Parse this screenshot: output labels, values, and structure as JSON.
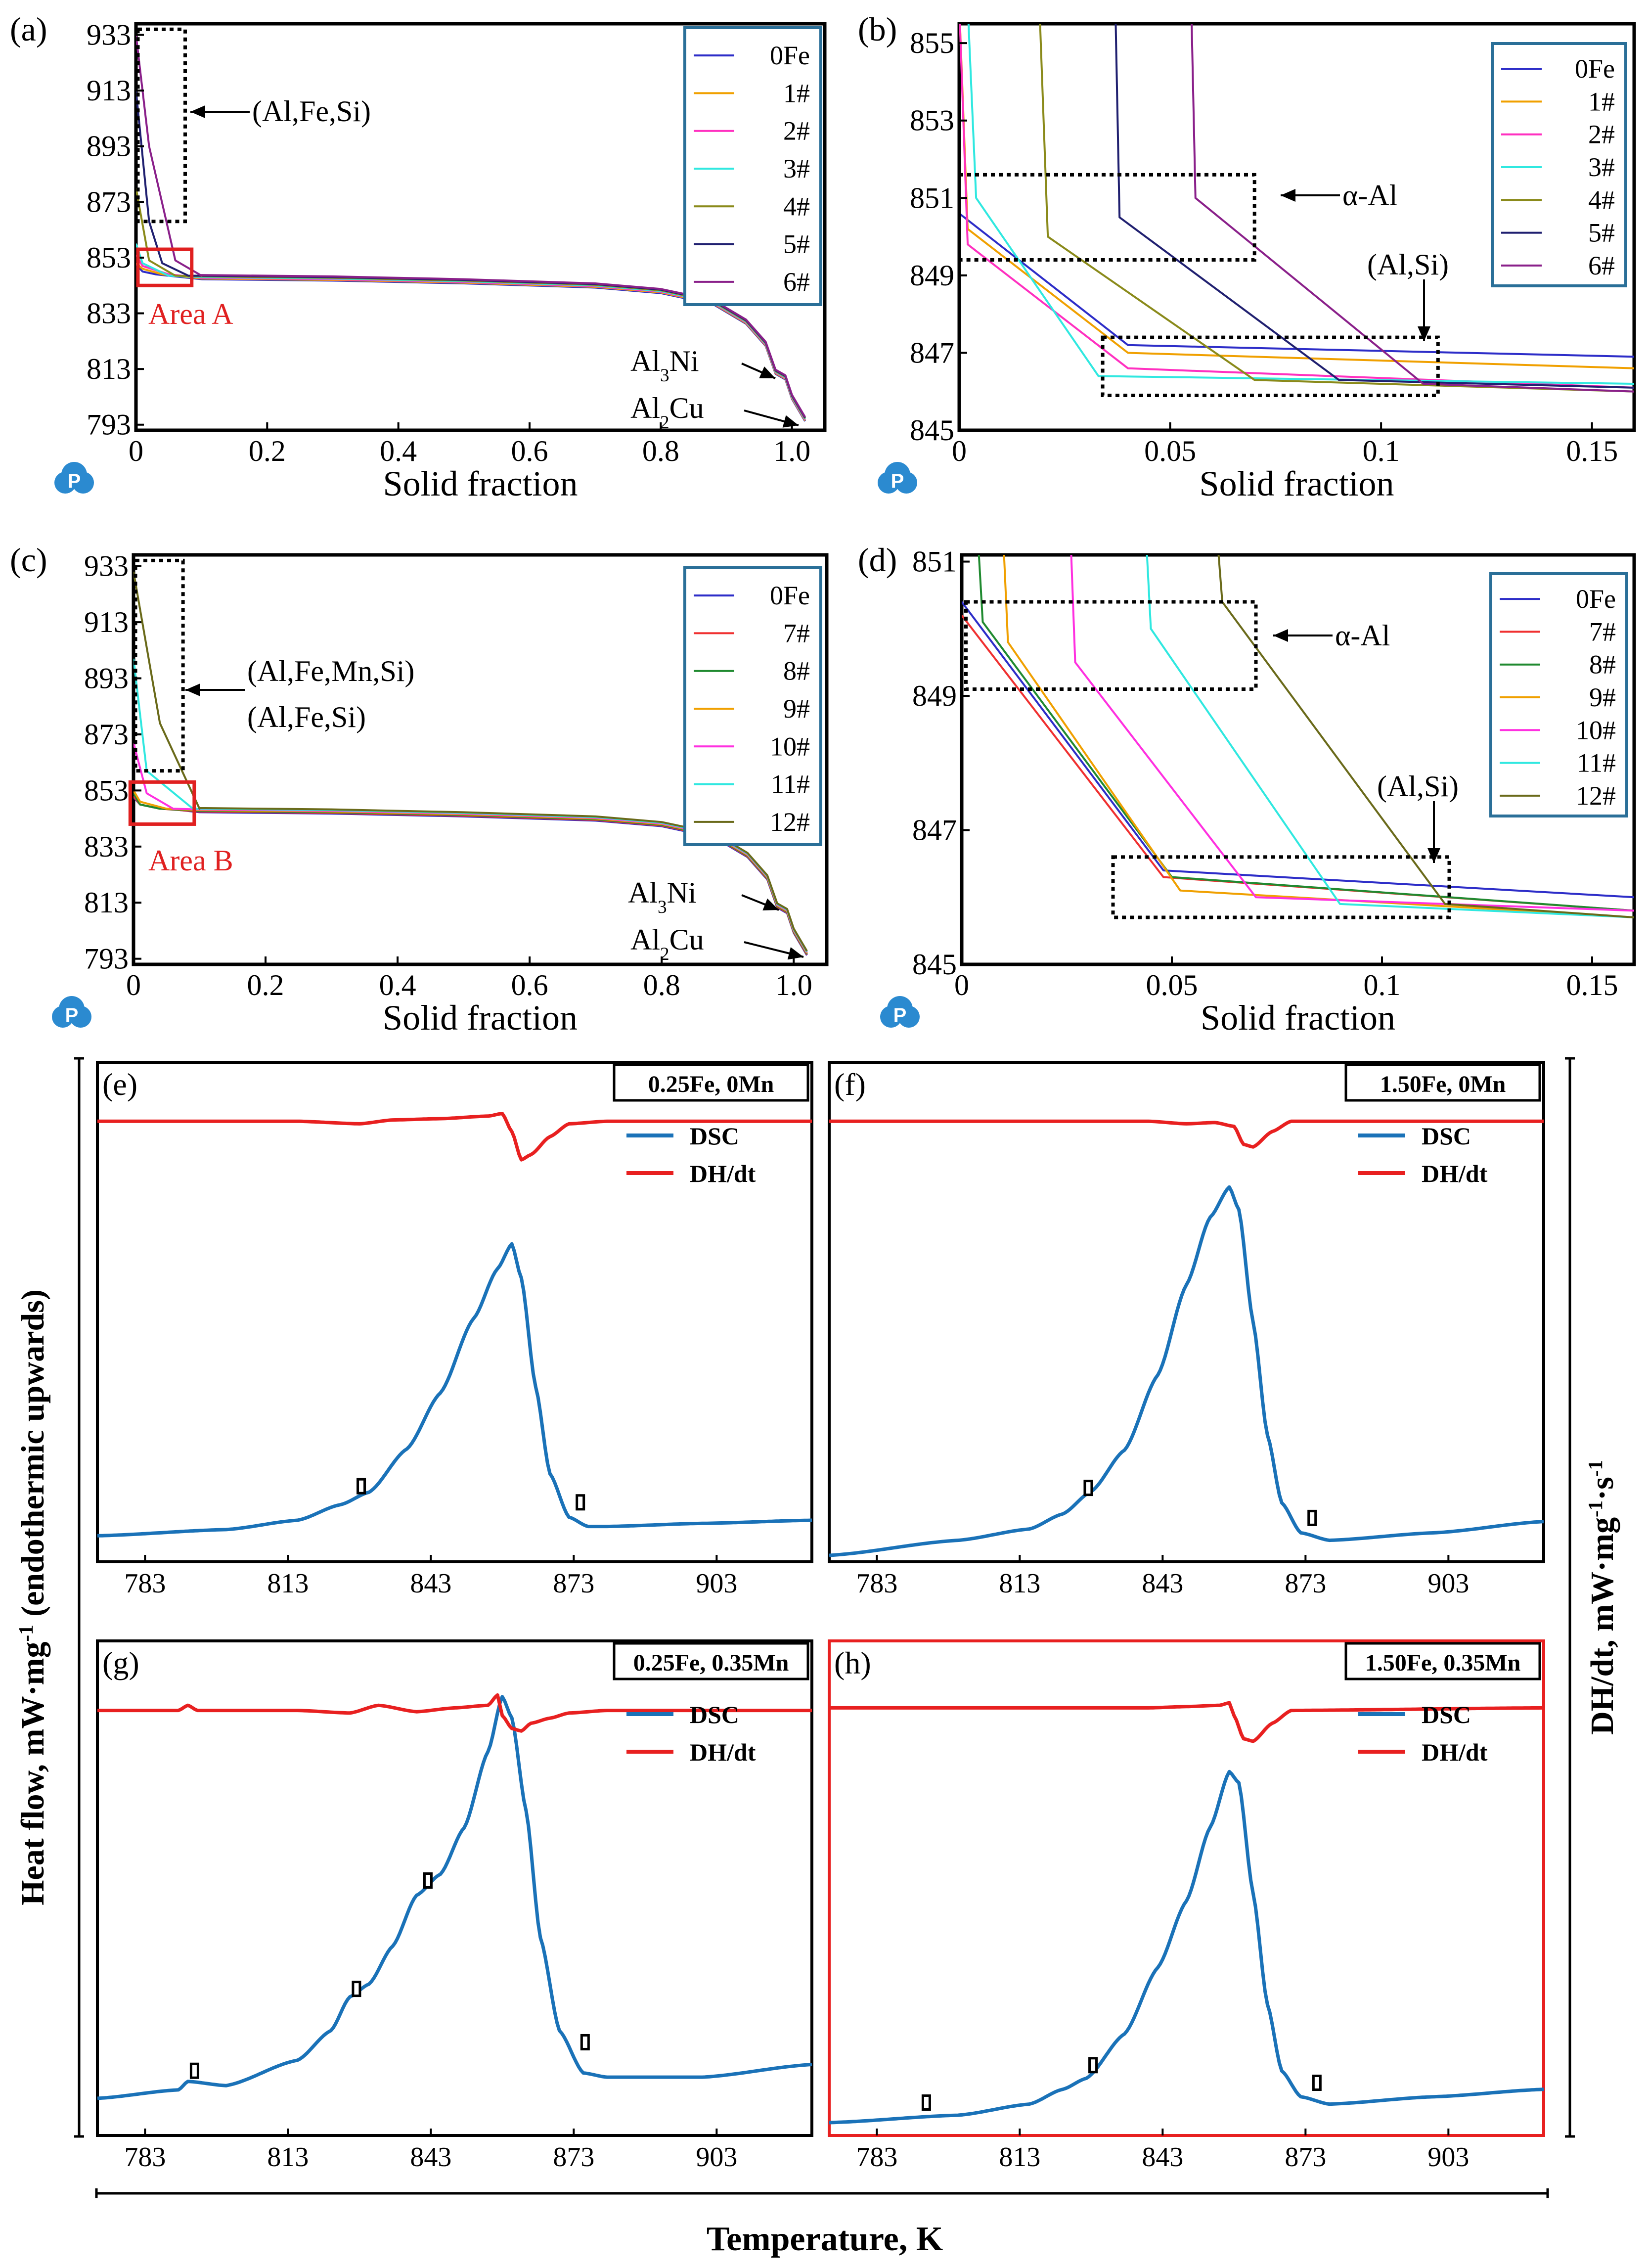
{
  "chart_data": [
    {
      "id": "a",
      "type": "line",
      "panel_label": "(a)",
      "xlabel": "Solid fraction",
      "ylabel": "",
      "xlim": [
        0,
        1.05
      ],
      "ylim": [
        791,
        937
      ],
      "xticks": [
        0,
        0.2,
        0.4,
        0.6,
        0.8,
        1.0
      ],
      "xtick_labels": [
        "0",
        "0.2",
        "0.4",
        "0.6",
        "0.8",
        "1.0"
      ],
      "yticks": [
        793,
        813,
        833,
        853,
        873,
        893,
        913,
        933
      ],
      "legend": [
        "0Fe",
        "1#",
        "2#",
        "3#",
        "4#",
        "5#",
        "6#"
      ],
      "colors": [
        "#2d2dc8",
        "#f0a000",
        "#ff30c0",
        "#30e8e0",
        "#8a8a1a",
        "#202070",
        "#8a208a"
      ],
      "series_start": [
        {
          "name": "0Fe",
          "x": [
            0,
            0.01,
            0.03
          ],
          "y": [
            850.6,
            848,
            847
          ]
        },
        {
          "name": "1#",
          "x": [
            0,
            0.01,
            0.04
          ],
          "y": [
            851,
            849,
            847
          ]
        },
        {
          "name": "2#",
          "x": [
            0,
            0.01,
            0.05
          ],
          "y": [
            854,
            850,
            847
          ]
        },
        {
          "name": "3#",
          "x": [
            0,
            0.01,
            0.05
          ],
          "y": [
            858,
            851,
            846.5
          ]
        },
        {
          "name": "4#",
          "x": [
            0,
            0.02,
            0.06
          ],
          "y": [
            878,
            852,
            846.5
          ]
        },
        {
          "name": "5#",
          "x": [
            0,
            0.02,
            0.04,
            0.08
          ],
          "y": [
            913,
            866,
            851,
            846.5
          ]
        },
        {
          "name": "6#",
          "x": [
            0,
            0.02,
            0.06,
            0.1
          ],
          "y": [
            933,
            893,
            852,
            846.5
          ]
        }
      ],
      "common_curve": {
        "x": [
          0.1,
          0.3,
          0.5,
          0.7,
          0.8,
          0.88,
          0.93,
          0.96,
          0.975,
          0.99,
          1.0,
          1.02
        ],
        "y": [
          846,
          845.5,
          844.5,
          843,
          841,
          837,
          830,
          822,
          812,
          810,
          803,
          795
        ]
      },
      "annotations": [
        "(Al,Fe,Si)",
        "Area A",
        "Al3Ni",
        "Al2Cu"
      ]
    },
    {
      "id": "b",
      "type": "line",
      "panel_label": "(b)",
      "xlabel": "Solid fraction",
      "ylabel": "",
      "xlim": [
        0,
        0.16
      ],
      "ylim": [
        845,
        855.5
      ],
      "xticks": [
        0,
        0.05,
        0.1,
        0.15
      ],
      "xtick_labels": [
        "0",
        "0.05",
        "0.1",
        "0.15"
      ],
      "yticks": [
        845,
        847,
        849,
        851,
        853,
        855
      ],
      "legend": [
        "0Fe",
        "1#",
        "2#",
        "3#",
        "4#",
        "5#",
        "6#"
      ],
      "colors": [
        "#2d2dc8",
        "#f0a000",
        "#ff30c0",
        "#30e8e0",
        "#8a8a1a",
        "#202070",
        "#8a208a"
      ],
      "series": [
        {
          "name": "0Fe",
          "x": [
            0,
            0.04,
            0.16
          ],
          "y": [
            850.6,
            847.2,
            846.9
          ]
        },
        {
          "name": "1#",
          "x": [
            0,
            0.002,
            0.04,
            0.16
          ],
          "y": [
            856,
            850.2,
            847,
            846.6
          ]
        },
        {
          "name": "2#",
          "x": [
            0,
            0.002,
            0.04,
            0.16
          ],
          "y": [
            856,
            849.8,
            846.6,
            846.1
          ]
        },
        {
          "name": "3#",
          "x": [
            0.002,
            0.004,
            0.033,
            0.16
          ],
          "y": [
            856,
            851,
            846.4,
            846.2
          ]
        },
        {
          "name": "4#",
          "x": [
            0.019,
            0.021,
            0.07,
            0.16
          ],
          "y": [
            856,
            850,
            846.3,
            846.0
          ]
        },
        {
          "name": "5#",
          "x": [
            0.037,
            0.038,
            0.09,
            0.16
          ],
          "y": [
            856,
            850.5,
            846.3,
            846.1
          ]
        },
        {
          "name": "6#",
          "x": [
            0.055,
            0.056,
            0.11,
            0.16
          ],
          "y": [
            856,
            851,
            846.2,
            846.0
          ]
        }
      ],
      "annotations": [
        "α-Al",
        "(Al,Si)"
      ]
    },
    {
      "id": "c",
      "type": "line",
      "panel_label": "(c)",
      "xlabel": "Solid fraction",
      "ylabel": "",
      "xlim": [
        0,
        1.05
      ],
      "ylim": [
        791,
        937
      ],
      "xticks": [
        0,
        0.2,
        0.4,
        0.6,
        0.8,
        1.0
      ],
      "xtick_labels": [
        "0",
        "0.2",
        "0.4",
        "0.6",
        "0.8",
        "1.0"
      ],
      "yticks": [
        793,
        813,
        833,
        853,
        873,
        893,
        913,
        933
      ],
      "legend": [
        "0Fe",
        "7#",
        "8#",
        "9#",
        "10#",
        "11#",
        "12#"
      ],
      "colors": [
        "#2d2dc8",
        "#f03030",
        "#208a30",
        "#f0a000",
        "#ff30e0",
        "#30e8e0",
        "#6a6a1a"
      ],
      "series_start": [
        {
          "name": "0Fe",
          "x": [
            0,
            0.01,
            0.03
          ],
          "y": [
            850.6,
            848,
            847
          ]
        },
        {
          "name": "7#",
          "x": [
            0,
            0.01,
            0.04
          ],
          "y": [
            851,
            848,
            846.5
          ]
        },
        {
          "name": "8#",
          "x": [
            0,
            0.01,
            0.04
          ],
          "y": [
            852,
            848,
            846.5
          ]
        },
        {
          "name": "9#",
          "x": [
            0,
            0.01,
            0.05
          ],
          "y": [
            853,
            849,
            846.5
          ]
        },
        {
          "name": "10#",
          "x": [
            0,
            0.02,
            0.06
          ],
          "y": [
            870,
            852,
            846.5
          ]
        },
        {
          "name": "11#",
          "x": [
            0,
            0.02,
            0.09
          ],
          "y": [
            900,
            860,
            846.5
          ]
        },
        {
          "name": "12#",
          "x": [
            0,
            0.04,
            0.1
          ],
          "y": [
            931,
            877,
            846.5
          ]
        }
      ],
      "common_curve": {
        "x": [
          0.1,
          0.3,
          0.5,
          0.7,
          0.8,
          0.88,
          0.93,
          0.96,
          0.975,
          0.99,
          1.0,
          1.02
        ],
        "y": [
          846,
          845.5,
          844.5,
          843,
          841,
          837,
          830,
          822,
          812,
          810,
          803,
          795
        ]
      },
      "annotations": [
        "(Al,Fe,Mn,Si)",
        "(Al,Fe,Si)",
        "Area B",
        "Al3Ni",
        "Al2Cu"
      ]
    },
    {
      "id": "d",
      "type": "line",
      "panel_label": "(d)",
      "xlabel": "Solid fraction",
      "ylabel": "",
      "xlim": [
        0,
        0.16
      ],
      "ylim": [
        845,
        851.1
      ],
      "xticks": [
        0,
        0.05,
        0.1,
        0.15
      ],
      "xtick_labels": [
        "0",
        "0.05",
        "0.1",
        "0.15"
      ],
      "yticks": [
        845,
        847,
        849,
        851
      ],
      "legend": [
        "0Fe",
        "7#",
        "8#",
        "9#",
        "10#",
        "11#",
        "12#"
      ],
      "colors": [
        "#2d2dc8",
        "#f03030",
        "#208a30",
        "#f0a000",
        "#ff30e0",
        "#30e8e0",
        "#6a6a1a"
      ],
      "series": [
        {
          "name": "0Fe",
          "x": [
            0,
            0.048,
            0.16
          ],
          "y": [
            850.4,
            846.4,
            846.0
          ]
        },
        {
          "name": "7#",
          "x": [
            0,
            0.048,
            0.16
          ],
          "y": [
            850.2,
            846.3,
            845.8
          ]
        },
        {
          "name": "8#",
          "x": [
            0.004,
            0.005,
            0.05,
            0.16
          ],
          "y": [
            851.2,
            850.1,
            846.3,
            845.8
          ]
        },
        {
          "name": "9#",
          "x": [
            0.01,
            0.011,
            0.052,
            0.16
          ],
          "y": [
            851.2,
            849.8,
            846.1,
            845.7
          ]
        },
        {
          "name": "10#",
          "x": [
            0.026,
            0.027,
            0.07,
            0.16
          ],
          "y": [
            851.2,
            849.5,
            846.0,
            845.8
          ]
        },
        {
          "name": "11#",
          "x": [
            0.044,
            0.045,
            0.09,
            0.16
          ],
          "y": [
            851.2,
            850.0,
            845.9,
            845.7
          ]
        },
        {
          "name": "12#",
          "x": [
            0.061,
            0.062,
            0.115,
            0.16
          ],
          "y": [
            851.2,
            850.4,
            845.9,
            845.7
          ]
        }
      ],
      "annotations": [
        "α-Al",
        "(Al,Si)"
      ]
    },
    {
      "id": "e",
      "type": "line",
      "panel_label": "(e)",
      "condition": "0.25Fe, 0Mn",
      "xlabel": "Temperature, K",
      "xlim": [
        773,
        923
      ],
      "xticks": [
        783,
        813,
        843,
        873,
        903
      ],
      "series": [
        {
          "name": "DSC",
          "x": [
            773,
            800,
            815,
            824,
            830,
            838,
            845,
            852,
            857,
            860,
            862,
            865,
            868,
            872,
            876,
            880,
            900,
            923
          ],
          "y": [
            0.02,
            0.04,
            0.07,
            0.12,
            0.16,
            0.3,
            0.48,
            0.72,
            0.88,
            0.96,
            0.85,
            0.5,
            0.22,
            0.08,
            0.05,
            0.05,
            0.06,
            0.07
          ]
        },
        {
          "name": "DH/dt",
          "x": [
            773,
            815,
            828,
            835,
            845,
            855,
            858,
            860,
            862,
            864,
            868,
            872,
            880,
            923
          ],
          "y": [
            0.99,
            0.99,
            0.98,
            0.995,
            1.0,
            1.01,
            1.02,
            0.95,
            0.84,
            0.86,
            0.93,
            0.98,
            0.99,
            0.99
          ]
        }
      ],
      "markers_x": [
        826,
        872
      ]
    },
    {
      "id": "f",
      "type": "line",
      "panel_label": "(f)",
      "condition": "1.50Fe, 0Mn",
      "xlabel": "Temperature, K",
      "xlim": [
        773,
        923
      ],
      "xticks": [
        783,
        813,
        843,
        873,
        903
      ],
      "series": [
        {
          "name": "DSC",
          "x": [
            773,
            800,
            815,
            822,
            828,
            835,
            842,
            848,
            853,
            857,
            859,
            862,
            865,
            868,
            872,
            878,
            900,
            923
          ],
          "y": [
            0.0,
            0.04,
            0.07,
            0.11,
            0.17,
            0.28,
            0.48,
            0.72,
            0.9,
            0.98,
            0.92,
            0.62,
            0.32,
            0.14,
            0.06,
            0.04,
            0.06,
            0.09
          ]
        },
        {
          "name": "DH/dt",
          "x": [
            773,
            840,
            848,
            854,
            858,
            860,
            862,
            866,
            870,
            923
          ],
          "y": [
            0.99,
            0.99,
            0.98,
            0.985,
            0.97,
            0.9,
            0.89,
            0.95,
            0.99,
            0.99
          ]
        }
      ],
      "markers_x": [
        825,
        872
      ]
    },
    {
      "id": "g",
      "type": "line",
      "panel_label": "(g)",
      "condition": "0.25Fe, 0.35Mn",
      "xlabel": "Temperature, K",
      "xlim": [
        773,
        923
      ],
      "xticks": [
        783,
        813,
        843,
        873,
        903
      ],
      "series": [
        {
          "name": "DSC",
          "x": [
            773,
            790,
            792,
            800,
            815,
            822,
            826,
            830,
            835,
            840,
            845,
            850,
            855,
            858,
            860,
            863,
            866,
            870,
            875,
            880,
            900,
            923
          ],
          "y": [
            0.02,
            0.04,
            0.06,
            0.05,
            0.11,
            0.18,
            0.26,
            0.29,
            0.38,
            0.5,
            0.55,
            0.66,
            0.84,
            0.97,
            0.92,
            0.7,
            0.4,
            0.18,
            0.08,
            0.07,
            0.07,
            0.1
          ]
        },
        {
          "name": "DH/dt",
          "x": [
            773,
            790,
            792,
            794,
            815,
            826,
            832,
            840,
            848,
            855,
            857,
            858,
            860,
            862,
            864,
            868,
            872,
            880,
            923
          ],
          "y": [
            0.97,
            0.97,
            0.99,
            0.97,
            0.97,
            0.96,
            0.99,
            0.965,
            0.98,
            0.99,
            1.03,
            0.95,
            0.9,
            0.89,
            0.92,
            0.94,
            0.96,
            0.97,
            0.97
          ]
        }
      ],
      "markers_x": [
        791,
        825,
        840,
        873
      ]
    },
    {
      "id": "h",
      "type": "line",
      "panel_label": "(h)",
      "condition": "1.50Fe, 0.35Mn",
      "xlabel": "Temperature, K",
      "xlim": [
        773,
        923
      ],
      "xticks": [
        783,
        813,
        843,
        873,
        903
      ],
      "series": [
        {
          "name": "DSC",
          "x": [
            773,
            800,
            815,
            822,
            827,
            835,
            842,
            848,
            853,
            857,
            859,
            862,
            865,
            868,
            872,
            878,
            900,
            923
          ],
          "y": [
            0.0,
            0.02,
            0.05,
            0.09,
            0.12,
            0.24,
            0.42,
            0.6,
            0.8,
            0.95,
            0.92,
            0.62,
            0.32,
            0.14,
            0.07,
            0.05,
            0.07,
            0.09
          ]
        },
        {
          "name": "DH/dt",
          "x": [
            773,
            840,
            848,
            855,
            857,
            858,
            860,
            862,
            866,
            870,
            923
          ],
          "y": [
            0.98,
            0.98,
            0.985,
            0.99,
            1.0,
            0.95,
            0.86,
            0.85,
            0.92,
            0.97,
            0.98
          ]
        }
      ],
      "markers_x": [
        791,
        826,
        873
      ]
    }
  ],
  "labels": {
    "heat_flow_axis": "Heat flow, mW·mg",
    "heat_flow_sup": "-1",
    "heat_flow_tail": " (endothermic upwards)",
    "dhdt_axis": "DH/dt, mW·mg",
    "dhdt_sup1": "-1",
    "dhdt_mid": "·s",
    "dhdt_sup2": "-1",
    "temperature_axis": "Temperature, K",
    "dsc_legend": "DSC",
    "dhdt_legend": "DH/dt",
    "anno_alfesi": "(Al,Fe,Si)",
    "anno_alfemnsi": "(Al,Fe,Mn,Si)",
    "anno_alpha": "α-Al",
    "anno_alsi": "(Al,Si)",
    "area_a": "Area A",
    "area_b": "Area B",
    "al3ni_base": "Al",
    "al3ni_sub": "3",
    "al3ni_tail": "Ni",
    "al2cu_base": "Al",
    "al2cu_sub": "2",
    "al2cu_tail": "Cu",
    "logo_letter": "P"
  }
}
